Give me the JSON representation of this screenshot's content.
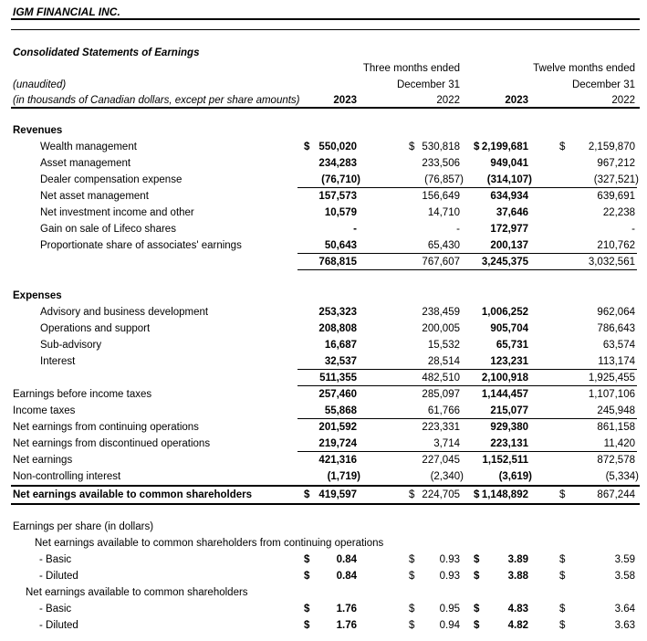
{
  "header": {
    "company": "IGM FINANCIAL INC.",
    "statement_title": "Consolidated Statements of Earnings",
    "unaudited_note": "(unaudited)",
    "units_note": "(in thousands of Canadian dollars, except per share amounts)",
    "col_groups": [
      {
        "title": "Three months ended",
        "date": "December 31",
        "years": [
          "2023",
          "2022"
        ]
      },
      {
        "title": "Twelve months ended",
        "date": "December 31",
        "years": [
          "2023",
          "2022"
        ]
      }
    ]
  },
  "table": {
    "column_keys": [
      "3mo-2023",
      "3mo-2022",
      "12mo-2023",
      "12mo-2022"
    ],
    "rows": [
      {
        "label": "Revenues",
        "indent": 0,
        "bold": true
      },
      {
        "label": "Wealth management",
        "indent": 1,
        "dollar": true,
        "values": [
          "550,020",
          "530,818",
          "2,199,681",
          "2,159,870"
        ]
      },
      {
        "label": "Asset management",
        "indent": 1,
        "values": [
          "234,283",
          "233,506",
          "949,041",
          "967,212"
        ]
      },
      {
        "label": "Dealer compensation expense",
        "indent": 1,
        "values": [
          "(76,710)",
          "(76,857)",
          "(314,107)",
          "(327,521)"
        ],
        "rule": "num"
      },
      {
        "label": "Net asset management",
        "indent": 1,
        "values": [
          "157,573",
          "156,649",
          "634,934",
          "639,691"
        ]
      },
      {
        "label": "Net investment income and other",
        "indent": 1,
        "values": [
          "10,579",
          "14,710",
          "37,646",
          "22,238"
        ]
      },
      {
        "label": "Gain on sale of Lifeco shares",
        "indent": 1,
        "values": [
          "-",
          "-",
          "172,977",
          "-"
        ]
      },
      {
        "label": "Proportionate share of associates' earnings",
        "indent": 1,
        "values": [
          "50,643",
          "65,430",
          "200,137",
          "210,762"
        ],
        "rule": "num"
      },
      {
        "label": "",
        "indent": 0,
        "values": [
          "768,815",
          "767,607",
          "3,245,375",
          "3,032,561"
        ],
        "rule": "num",
        "gap": 19
      },
      {
        "label": "Expenses",
        "indent": 0,
        "bold": true
      },
      {
        "label": "Advisory and business development",
        "indent": 1,
        "values": [
          "253,323",
          "238,459",
          "1,006,252",
          "962,064"
        ]
      },
      {
        "label": "Operations and support",
        "indent": 1,
        "values": [
          "208,808",
          "200,005",
          "905,704",
          "786,643"
        ]
      },
      {
        "label": "Sub-advisory",
        "indent": 1,
        "values": [
          "16,687",
          "15,532",
          "65,731",
          "63,574"
        ]
      },
      {
        "label": "Interest",
        "indent": 1,
        "values": [
          "32,537",
          "28,514",
          "123,231",
          "113,174"
        ],
        "rule": "num"
      },
      {
        "label": "",
        "indent": 0,
        "values": [
          "511,355",
          "482,510",
          "2,100,918",
          "1,925,455"
        ],
        "rule": "num"
      },
      {
        "label": "Earnings before income taxes",
        "indent": 0,
        "values": [
          "257,460",
          "285,097",
          "1,144,457",
          "1,107,106"
        ]
      },
      {
        "label": "Income taxes",
        "indent": 0,
        "values": [
          "55,868",
          "61,766",
          "215,077",
          "245,948"
        ],
        "rule": "num"
      },
      {
        "label": "Net earnings from continuing operations",
        "indent": 0,
        "values": [
          "201,592",
          "223,331",
          "929,380",
          "861,158"
        ]
      },
      {
        "label": "Net earnings from discontinued operations",
        "indent": 0,
        "values": [
          "219,724",
          "3,714",
          "223,131",
          "11,420"
        ],
        "rule": "num"
      },
      {
        "label": "Net earnings",
        "indent": 0,
        "values": [
          "421,316",
          "227,045",
          "1,152,511",
          "872,578"
        ]
      },
      {
        "label": "Non-controlling interest",
        "indent": 0,
        "values": [
          "(1,719)",
          "(2,340)",
          "(3,619)",
          "(5,334)"
        ]
      },
      {
        "label": "Net earnings available to common shareholders",
        "indent": 0,
        "bold": true,
        "dollar": true,
        "values": [
          "419,597",
          "224,705",
          "1,148,892",
          "867,244"
        ],
        "rule": "box",
        "gap": 15
      },
      {
        "label": "Earnings per share (in dollars)",
        "indent": 0
      },
      {
        "label": "Net earnings available to common shareholders from continuing operations",
        "indent": 2
      },
      {
        "label": "- Basic",
        "indent": 4,
        "dollar": true,
        "values": [
          "0.84",
          "0.93",
          "3.89",
          "3.59"
        ]
      },
      {
        "label": "- Diluted",
        "indent": 4,
        "dollar": true,
        "values": [
          "0.84",
          "0.93",
          "3.88",
          "3.58"
        ]
      },
      {
        "label": "Net earnings available to common shareholders",
        "indent": 3
      },
      {
        "label": "- Basic",
        "indent": 4,
        "dollar": true,
        "values": [
          "1.76",
          "0.95",
          "4.83",
          "3.64"
        ]
      },
      {
        "label": "- Diluted",
        "indent": 4,
        "dollar": true,
        "values": [
          "1.76",
          "0.94",
          "4.82",
          "3.63"
        ]
      }
    ],
    "currency_symbol": "$"
  }
}
